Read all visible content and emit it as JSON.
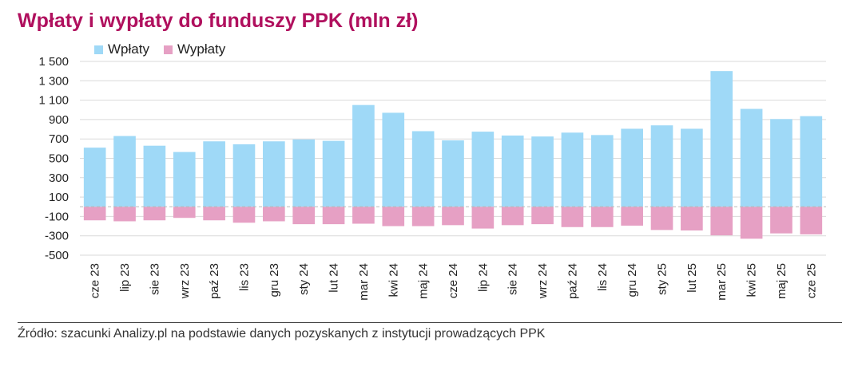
{
  "title": "Wpłaty i wypłaty do funduszy PPK (mln zł)",
  "legend": [
    {
      "label": "Wpłaty",
      "color": "#9fd9f7"
    },
    {
      "label": "Wypłaty",
      "color": "#e6a0c4"
    }
  ],
  "source": "Źródło: szacunki Analizy.pl na podstawie danych pozyskanych z instytucji prowadzących PPK",
  "chart_data": {
    "type": "bar",
    "stacked": true,
    "categories": [
      "cze 23",
      "lip 23",
      "sie 23",
      "wrz 23",
      "paź 23",
      "lis 23",
      "gru 23",
      "sty 24",
      "lut 24",
      "mar 24",
      "kwi 24",
      "maj 24",
      "cze 24",
      "lip 24",
      "sie 24",
      "wrz 24",
      "paź 24",
      "lis 24",
      "gru 24",
      "sty 25",
      "lut 25",
      "mar 25",
      "kwi 25",
      "maj 25",
      "cze 25"
    ],
    "series": [
      {
        "name": "Wpłaty",
        "color": "#9fd9f7",
        "values": [
          610,
          730,
          630,
          565,
          675,
          645,
          675,
          695,
          680,
          1050,
          970,
          780,
          685,
          775,
          735,
          725,
          765,
          740,
          805,
          840,
          805,
          1400,
          1010,
          905,
          935
        ]
      },
      {
        "name": "Wypłaty",
        "color": "#e6a0c4",
        "values": [
          -140,
          -150,
          -140,
          -115,
          -140,
          -165,
          -150,
          -180,
          -180,
          -175,
          -200,
          -200,
          -190,
          -225,
          -190,
          -180,
          -210,
          -210,
          -195,
          -240,
          -245,
          -295,
          -330,
          -275,
          -285
        ]
      }
    ],
    "yticks": [
      "1 500",
      "1 300",
      "1 100",
      "900",
      "700",
      "500",
      "300",
      "100",
      "-100",
      "-300",
      "-500"
    ],
    "ytick_values": [
      1500,
      1300,
      1100,
      900,
      700,
      500,
      300,
      100,
      -100,
      -300,
      -500
    ],
    "ylim": [
      -500,
      1500
    ],
    "xlabel": "",
    "ylabel": "",
    "grid": true,
    "legend_position": "top-left"
  }
}
